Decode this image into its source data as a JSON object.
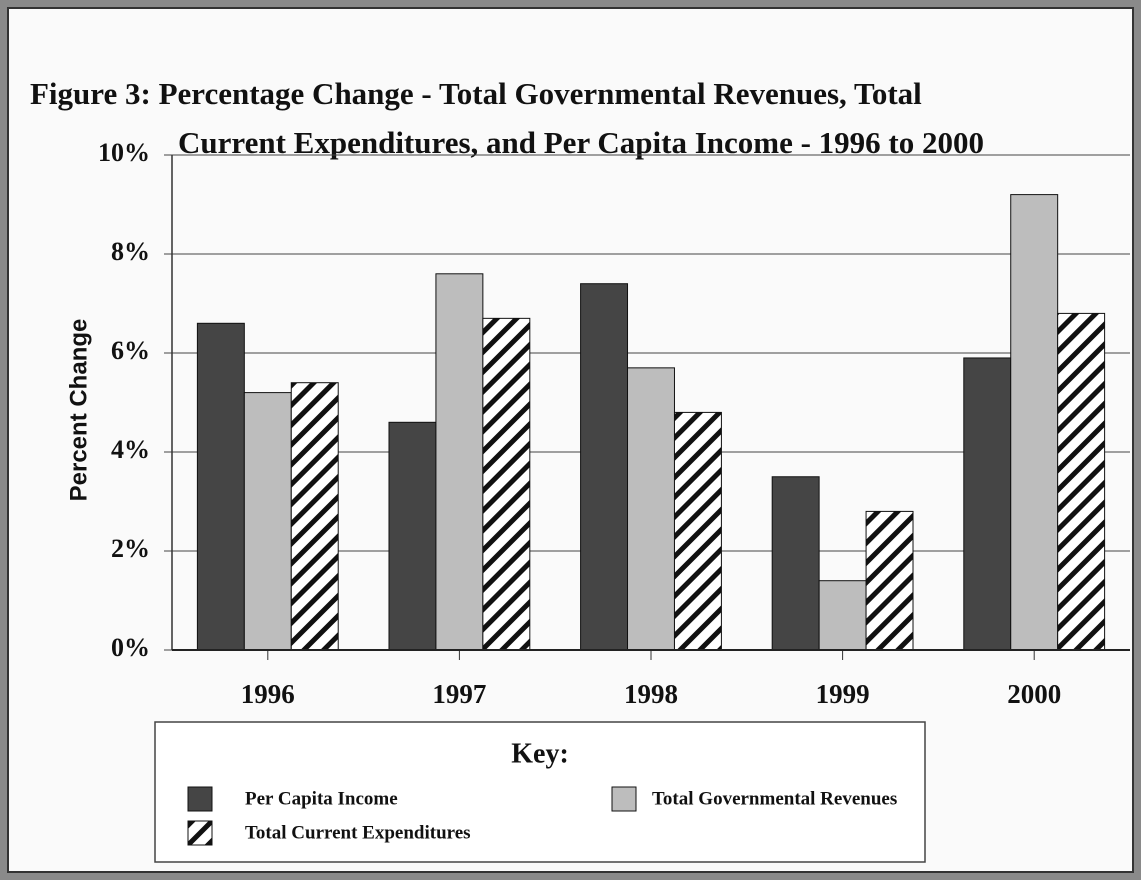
{
  "chart_data": {
    "type": "bar",
    "title": [
      "Figure 3:  Percentage Change - Total Governmental Revenues, Total",
      "Current Expenditures, and Per Capita Income - 1996 to 2000"
    ],
    "y_label": "Percent Change",
    "categories": [
      "1996",
      "1997",
      "1998",
      "1999",
      "2000"
    ],
    "series": [
      {
        "name": "Per Capita Income",
        "color": "#454545",
        "values": [
          6.6,
          4.6,
          7.4,
          3.5,
          5.9
        ]
      },
      {
        "name": "Total Governmental Revenues",
        "color": "#bdbdbd",
        "values": [
          5.2,
          7.6,
          5.7,
          1.4,
          9.2
        ]
      },
      {
        "name": "Total Current Expenditures",
        "color": "#ffffff",
        "hatch": true,
        "values": [
          5.4,
          6.7,
          4.8,
          2.8,
          6.8
        ]
      }
    ],
    "ylim": [
      0,
      10
    ],
    "yticks": [
      {
        "value": 0,
        "label": "0%"
      },
      {
        "value": 2,
        "label": "2%"
      },
      {
        "value": 4,
        "label": "4%"
      },
      {
        "value": 6,
        "label": "6%"
      },
      {
        "value": 8,
        "label": "8%"
      },
      {
        "value": 10,
        "label": "10%"
      }
    ],
    "grid": true,
    "legend_title": "Key:",
    "legend": "bottom"
  }
}
